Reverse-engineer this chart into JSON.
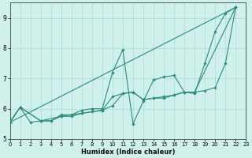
{
  "xlabel": "Humidex (Indice chaleur)",
  "bg_color": "#cff0eb",
  "line_color": "#2e8b7a",
  "grid_color": "#a8ddd8",
  "xlim": [
    0,
    23
  ],
  "ylim": [
    5.0,
    9.5
  ],
  "yticks": [
    5,
    6,
    7,
    8,
    9
  ],
  "xticks": [
    0,
    1,
    2,
    3,
    4,
    5,
    6,
    7,
    8,
    9,
    10,
    11,
    12,
    13,
    14,
    15,
    16,
    17,
    18,
    19,
    20,
    21,
    22,
    23
  ],
  "line1": [
    [
      0,
      5.55
    ],
    [
      1,
      6.05
    ],
    [
      2,
      5.55
    ],
    [
      3,
      5.6
    ],
    [
      4,
      5.6
    ],
    [
      5,
      5.8
    ],
    [
      6,
      5.8
    ],
    [
      7,
      5.95
    ],
    [
      8,
      6.0
    ],
    [
      9,
      6.0
    ],
    [
      10,
      7.2
    ],
    [
      11,
      7.95
    ],
    [
      12,
      5.5
    ],
    [
      13,
      6.25
    ],
    [
      14,
      6.95
    ],
    [
      15,
      7.05
    ],
    [
      16,
      7.1
    ],
    [
      17,
      6.55
    ],
    [
      18,
      6.5
    ],
    [
      19,
      7.5
    ],
    [
      20,
      8.55
    ],
    [
      21,
      9.15
    ],
    [
      22,
      9.35
    ]
  ],
  "line2": [
    [
      0,
      5.55
    ],
    [
      1,
      6.05
    ],
    [
      3,
      5.6
    ],
    [
      5,
      5.75
    ],
    [
      7,
      5.85
    ],
    [
      9,
      5.95
    ],
    [
      10,
      6.4
    ],
    [
      11,
      6.5
    ],
    [
      12,
      6.55
    ],
    [
      13,
      6.3
    ],
    [
      14,
      6.35
    ],
    [
      15,
      6.35
    ],
    [
      16,
      6.45
    ],
    [
      17,
      6.55
    ],
    [
      18,
      6.55
    ],
    [
      19,
      6.6
    ],
    [
      20,
      6.7
    ],
    [
      21,
      7.5
    ],
    [
      22,
      9.35
    ]
  ],
  "line3": [
    [
      0,
      5.55
    ],
    [
      22,
      9.35
    ]
  ],
  "line4": [
    [
      0,
      5.55
    ],
    [
      1,
      6.05
    ],
    [
      3,
      5.6
    ],
    [
      4,
      5.6
    ],
    [
      5,
      5.75
    ],
    [
      6,
      5.75
    ],
    [
      7,
      5.85
    ],
    [
      8,
      5.9
    ],
    [
      9,
      5.95
    ],
    [
      10,
      6.1
    ],
    [
      11,
      6.5
    ],
    [
      12,
      6.55
    ],
    [
      13,
      6.3
    ],
    [
      14,
      6.35
    ],
    [
      15,
      6.4
    ],
    [
      16,
      6.45
    ],
    [
      17,
      6.55
    ],
    [
      18,
      6.55
    ],
    [
      22,
      9.35
    ]
  ]
}
